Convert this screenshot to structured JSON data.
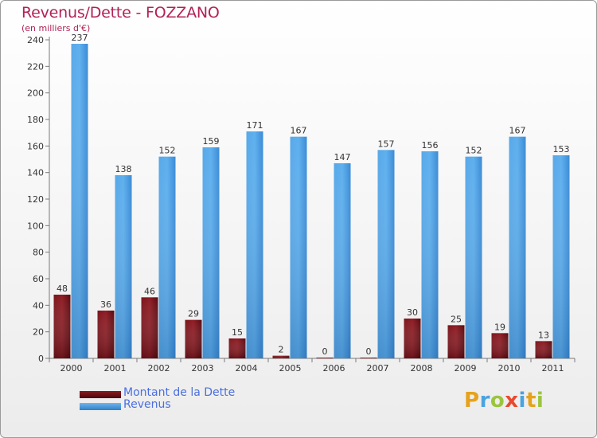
{
  "header": {
    "title": "Revenus/Dette - FOZZANO",
    "subtitle": "(en milliers d'€)"
  },
  "chart_data": {
    "type": "bar",
    "title": "Revenus/Dette - FOZZANO",
    "ylabel": "(en milliers d'€)",
    "xlabel": "",
    "categories": [
      "2000",
      "2001",
      "2002",
      "2003",
      "2004",
      "2005",
      "2006",
      "2007",
      "2008",
      "2009",
      "2010",
      "2011"
    ],
    "series": [
      {
        "name": "Montant de la Dette",
        "color": "#6b1016",
        "values": [
          48,
          36,
          46,
          29,
          15,
          2,
          0,
          0,
          30,
          25,
          19,
          13
        ]
      },
      {
        "name": "Revenus",
        "color": "#3d8fd8",
        "values": [
          237,
          138,
          152,
          159,
          171,
          167,
          147,
          157,
          156,
          152,
          167,
          153
        ]
      }
    ],
    "ylim": [
      0,
      240
    ],
    "yticks": [
      0,
      20,
      40,
      60,
      80,
      100,
      120,
      140,
      160,
      180,
      200,
      220,
      240
    ],
    "grid": false,
    "legend": "bottom-left"
  },
  "legend": {
    "items": [
      {
        "label": "Montant de la Dette",
        "color": "#6b1016"
      },
      {
        "label": "Revenus",
        "color": "#3d8fd8"
      }
    ]
  },
  "logo": {
    "letters": [
      "P",
      "r",
      "o",
      "x",
      "i",
      "t",
      "i"
    ],
    "colors": [
      "#e6a21a",
      "#4aa3df",
      "#9bc53d",
      "#e84a2f",
      "#4aa3df",
      "#e6a21a",
      "#9bc53d"
    ]
  }
}
